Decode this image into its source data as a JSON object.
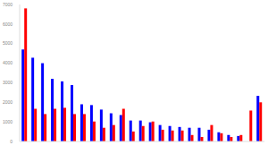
{
  "chart_data": {
    "type": "bar",
    "categories": [
      null,
      null,
      null,
      null,
      null,
      null,
      null,
      null,
      null,
      null,
      null,
      null,
      null,
      null,
      null,
      null,
      null,
      null,
      null,
      null,
      null,
      null,
      null,
      null,
      null
    ],
    "series": [
      {
        "color": "#0000ff",
        "values": [
          4700,
          4280,
          4000,
          3200,
          3070,
          2880,
          1900,
          1860,
          1630,
          1440,
          1350,
          1070,
          1070,
          980,
          840,
          790,
          740,
          700,
          700,
          600,
          470,
          330,
          280,
          0,
          2330
        ]
      },
      {
        "color": "#ff0000",
        "values": [
          6800,
          1670,
          1400,
          1670,
          1720,
          1400,
          1400,
          1020,
          700,
          840,
          1670,
          510,
          790,
          1020,
          600,
          560,
          560,
          330,
          230,
          840,
          420,
          230,
          330,
          1580,
          2000
        ]
      }
    ],
    "ylim": [
      0,
      7000
    ],
    "yticks": [
      0,
      1000,
      2000,
      3000,
      4000,
      5000,
      6000,
      7000
    ],
    "grid": false
  }
}
